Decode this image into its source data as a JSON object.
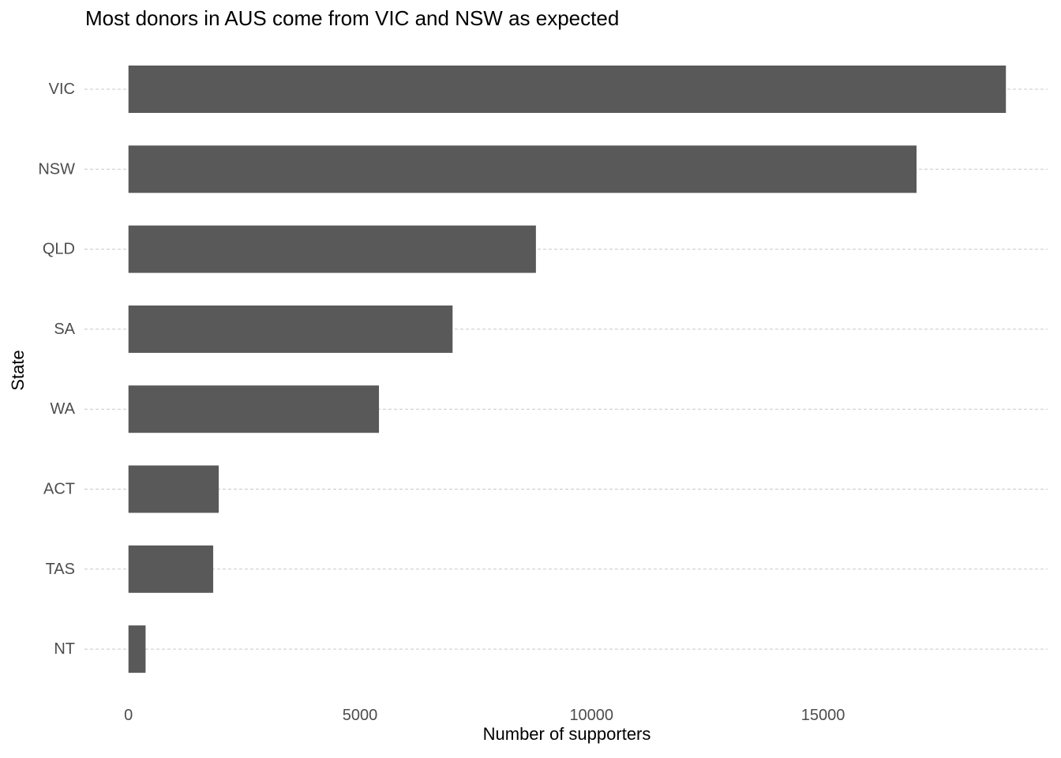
{
  "colors": {
    "bar": "#595959",
    "gridline": "#c8c8c8",
    "tick_label": "#4d4d4d"
  },
  "chart_data": {
    "type": "bar",
    "orientation": "horizontal",
    "title": "Most donors in AUS come from VIC and NSW as expected",
    "xlabel": "Number of supporters",
    "ylabel": "State",
    "categories": [
      "VIC",
      "NSW",
      "QLD",
      "SA",
      "WA",
      "ACT",
      "TAS",
      "NT"
    ],
    "values": [
      18950,
      17020,
      8800,
      7000,
      5410,
      1950,
      1830,
      370
    ],
    "xlim": [
      -950,
      19850
    ],
    "xticks": [
      0,
      5000,
      10000,
      15000
    ],
    "xtick_labels": [
      "0",
      "5000",
      "10000",
      "15000"
    ],
    "grid": "horizontal dashed at category lines",
    "legend": "none"
  }
}
